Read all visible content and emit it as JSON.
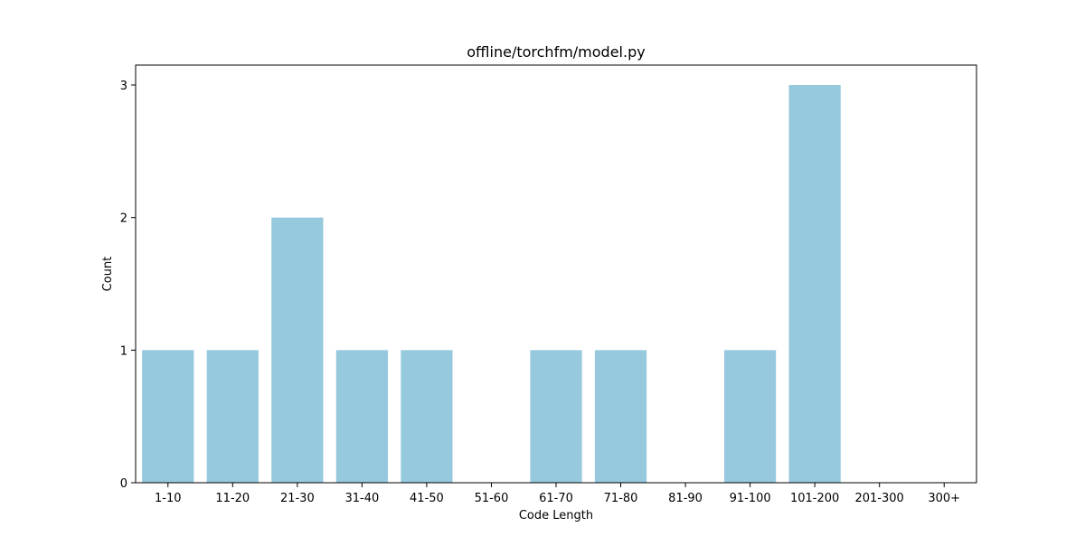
{
  "chart_data": {
    "type": "bar",
    "title": "offline/torchfm/model.py",
    "xlabel": "Code Length",
    "ylabel": "Count",
    "categories": [
      "1-10",
      "11-20",
      "21-30",
      "31-40",
      "41-50",
      "51-60",
      "61-70",
      "71-80",
      "81-90",
      "91-100",
      "101-200",
      "201-300",
      "300+"
    ],
    "values": [
      1,
      1,
      2,
      1,
      1,
      0,
      1,
      1,
      0,
      1,
      3,
      0,
      0
    ],
    "yticks": [
      0,
      1,
      2,
      3
    ],
    "ylim": [
      0,
      3.15
    ],
    "bar_color": "#96c9de",
    "grid": false,
    "legend": "none"
  }
}
